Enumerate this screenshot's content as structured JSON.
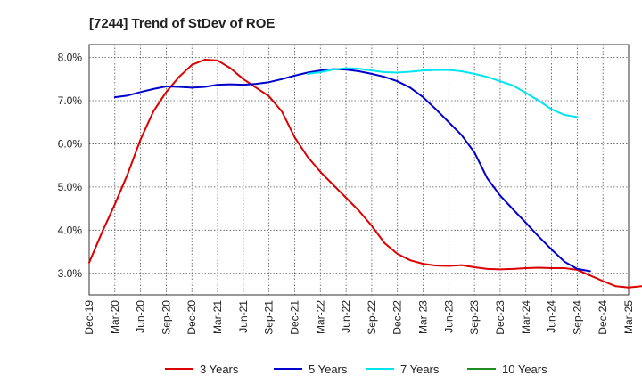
{
  "chart_data": {
    "type": "line",
    "title": "[7244]  Trend of StDev of ROE",
    "xlabel": "",
    "ylabel": "",
    "x_ticks": [
      "Dec-19",
      "Mar-20",
      "Jun-20",
      "Sep-20",
      "Dec-20",
      "Mar-21",
      "Jun-21",
      "Sep-21",
      "Dec-21",
      "Mar-22",
      "Jun-22",
      "Sep-22",
      "Dec-22",
      "Mar-23",
      "Jun-23",
      "Sep-23",
      "Dec-23",
      "Mar-24",
      "Jun-24",
      "Sep-24",
      "Dec-24",
      "Mar-25"
    ],
    "y_ticks": [
      "3.0%",
      "4.0%",
      "5.0%",
      "6.0%",
      "7.0%",
      "8.0%"
    ],
    "ylim": [
      2.5,
      8.3
    ],
    "grid": true,
    "legend_position": "bottom",
    "series": [
      {
        "name": "3 Years",
        "color": "#dd0000",
        "start_index": 0,
        "values": [
          3.25,
          3.95,
          4.6,
          5.3,
          6.1,
          6.75,
          7.2,
          7.55,
          7.83,
          7.95,
          7.93,
          7.75,
          7.5,
          7.3,
          7.1,
          6.75,
          6.15,
          5.7,
          5.35,
          5.05,
          4.75,
          4.45,
          4.1,
          3.7,
          3.45,
          3.3,
          3.22,
          3.18,
          3.17,
          3.19,
          3.14,
          3.1,
          3.09,
          3.1,
          3.12,
          3.13,
          3.12,
          3.12,
          3.08,
          2.95,
          2.82,
          2.7,
          2.67,
          2.7
        ]
      },
      {
        "name": "5 Years",
        "color": "#0000cc",
        "start_index": 2,
        "values": [
          7.08,
          7.12,
          7.2,
          7.27,
          7.33,
          7.32,
          7.3,
          7.32,
          7.37,
          7.38,
          7.37,
          7.39,
          7.43,
          7.5,
          7.58,
          7.65,
          7.7,
          7.73,
          7.72,
          7.68,
          7.62,
          7.55,
          7.45,
          7.3,
          7.08,
          6.8,
          6.5,
          6.2,
          5.8,
          5.2,
          4.8,
          4.48,
          4.17,
          3.85,
          3.55,
          3.27,
          3.1,
          3.05
        ]
      },
      {
        "name": "7 Years",
        "color": "#00e5ee",
        "start_index": 17,
        "values": [
          7.62,
          7.66,
          7.72,
          7.75,
          7.74,
          7.7,
          7.66,
          7.65,
          7.67,
          7.7,
          7.71,
          7.71,
          7.68,
          7.62,
          7.55,
          7.45,
          7.35,
          7.18,
          7.0,
          6.8,
          6.67,
          6.62
        ]
      },
      {
        "name": "10 Years",
        "color": "#228b22",
        "start_index": 0,
        "values": []
      }
    ]
  }
}
